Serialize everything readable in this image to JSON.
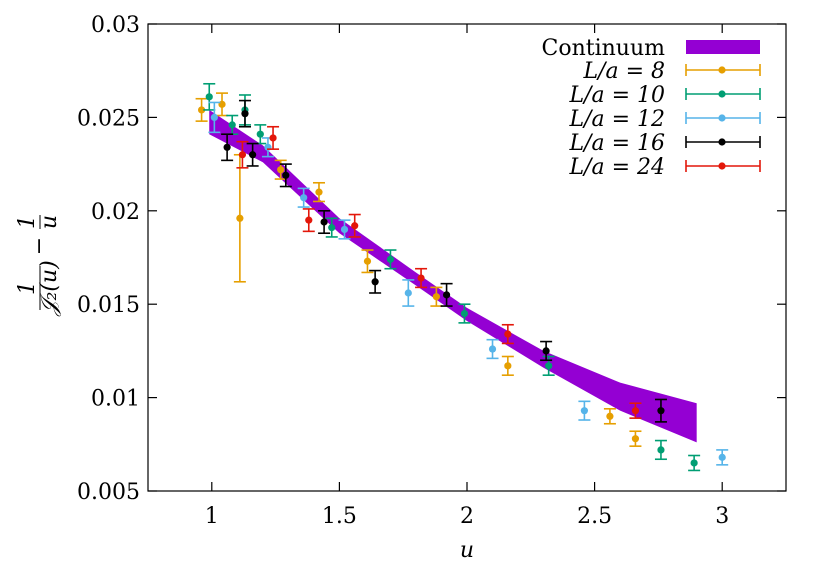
{
  "chart_data": {
    "type": "scatter",
    "xlabel": "u",
    "ylabel": {
      "frac1_num": "1",
      "frac1_den": "𝒥₂(u)",
      "minus": "−",
      "frac2_num": "1",
      "frac2_den": "u"
    },
    "xlim": [
      0.75,
      3.25
    ],
    "ylim": [
      0.005,
      0.03
    ],
    "xticks": [
      1,
      1.5,
      2,
      2.5,
      3
    ],
    "xtick_labels": [
      "1",
      "1.5",
      "2",
      "2.5",
      "3"
    ],
    "yticks": [
      0.005,
      0.01,
      0.015,
      0.02,
      0.025,
      0.03
    ],
    "ytick_labels": [
      "0.005",
      "0.01",
      "0.015",
      "0.02",
      "0.025",
      "0.03"
    ],
    "grid": false,
    "legend_position": "top-right",
    "continuum": {
      "name": "Continuum",
      "color": "#9400d3",
      "upper": [
        [
          0.99,
          0.0254
        ],
        [
          1.2,
          0.0235
        ],
        [
          1.5,
          0.0196
        ],
        [
          1.8,
          0.0167
        ],
        [
          2.0,
          0.0148
        ],
        [
          2.3,
          0.0125
        ],
        [
          2.6,
          0.0108
        ],
        [
          2.9,
          0.0097
        ]
      ],
      "lower": [
        [
          0.99,
          0.0241
        ],
        [
          1.2,
          0.0226
        ],
        [
          1.5,
          0.0188
        ],
        [
          1.8,
          0.016
        ],
        [
          2.0,
          0.0141
        ],
        [
          2.3,
          0.0116
        ],
        [
          2.6,
          0.0093
        ],
        [
          2.9,
          0.0076
        ]
      ]
    },
    "series": [
      {
        "name": "L/a = 8",
        "color": "#e69f00",
        "points": [
          {
            "x": 0.96,
            "y": 0.0254,
            "err": 0.0006
          },
          {
            "x": 1.04,
            "y": 0.0257,
            "err": 0.0006
          },
          {
            "x": 1.11,
            "y": 0.0196,
            "err": 0.0034
          },
          {
            "x": 1.27,
            "y": 0.0222,
            "err": 0.0005
          },
          {
            "x": 1.42,
            "y": 0.021,
            "err": 0.0005
          },
          {
            "x": 1.61,
            "y": 0.0173,
            "err": 0.0006
          },
          {
            "x": 1.88,
            "y": 0.0154,
            "err": 0.0005
          },
          {
            "x": 2.16,
            "y": 0.0117,
            "err": 0.0005
          },
          {
            "x": 2.56,
            "y": 0.009,
            "err": 0.0004
          },
          {
            "x": 2.66,
            "y": 0.0078,
            "err": 0.0004
          }
        ]
      },
      {
        "name": "L/a = 10",
        "color": "#009e73",
        "points": [
          {
            "x": 0.99,
            "y": 0.0261,
            "err": 0.0007
          },
          {
            "x": 1.08,
            "y": 0.0246,
            "err": 0.0005
          },
          {
            "x": 1.13,
            "y": 0.0254,
            "err": 0.0008
          },
          {
            "x": 1.19,
            "y": 0.0241,
            "err": 0.0005
          },
          {
            "x": 1.47,
            "y": 0.0191,
            "err": 0.0005
          },
          {
            "x": 1.7,
            "y": 0.0174,
            "err": 0.0005
          },
          {
            "x": 1.99,
            "y": 0.0145,
            "err": 0.0005
          },
          {
            "x": 2.32,
            "y": 0.0117,
            "err": 0.0005
          },
          {
            "x": 2.76,
            "y": 0.0072,
            "err": 0.0005
          },
          {
            "x": 2.89,
            "y": 0.0065,
            "err": 0.0004
          }
        ]
      },
      {
        "name": "L/a = 12",
        "color": "#56b4e9",
        "points": [
          {
            "x": 1.01,
            "y": 0.025,
            "err": 0.0008
          },
          {
            "x": 1.22,
            "y": 0.0234,
            "err": 0.0005
          },
          {
            "x": 1.36,
            "y": 0.0207,
            "err": 0.0005
          },
          {
            "x": 1.52,
            "y": 0.019,
            "err": 0.0005
          },
          {
            "x": 1.77,
            "y": 0.0156,
            "err": 0.0007
          },
          {
            "x": 2.1,
            "y": 0.0126,
            "err": 0.0005
          },
          {
            "x": 2.46,
            "y": 0.0093,
            "err": 0.0005
          },
          {
            "x": 3.0,
            "y": 0.0068,
            "err": 0.0004
          }
        ]
      },
      {
        "name": "L/a = 16",
        "color": "#000000",
        "points": [
          {
            "x": 1.06,
            "y": 0.0234,
            "err": 0.0007
          },
          {
            "x": 1.13,
            "y": 0.0252,
            "err": 0.0007
          },
          {
            "x": 1.16,
            "y": 0.023,
            "err": 0.0006
          },
          {
            "x": 1.29,
            "y": 0.0219,
            "err": 0.0006
          },
          {
            "x": 1.44,
            "y": 0.0194,
            "err": 0.0006
          },
          {
            "x": 1.64,
            "y": 0.0162,
            "err": 0.0006
          },
          {
            "x": 1.92,
            "y": 0.0155,
            "err": 0.0006
          },
          {
            "x": 2.31,
            "y": 0.0125,
            "err": 0.0005
          },
          {
            "x": 2.76,
            "y": 0.0093,
            "err": 0.0006
          }
        ]
      },
      {
        "name": "L/a = 24",
        "color": "#e3170a",
        "points": [
          {
            "x": 1.12,
            "y": 0.023,
            "err": 0.0007
          },
          {
            "x": 1.24,
            "y": 0.0239,
            "err": 0.0006
          },
          {
            "x": 1.38,
            "y": 0.0195,
            "err": 0.0006
          },
          {
            "x": 1.56,
            "y": 0.0192,
            "err": 0.0006
          },
          {
            "x": 1.82,
            "y": 0.0164,
            "err": 0.0005
          },
          {
            "x": 2.16,
            "y": 0.0134,
            "err": 0.0005
          },
          {
            "x": 2.66,
            "y": 0.0093,
            "err": 0.0004
          }
        ]
      }
    ]
  }
}
